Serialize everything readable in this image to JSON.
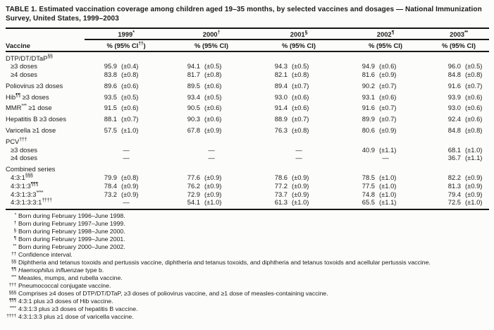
{
  "title": "TABLE 1. Estimated vaccination coverage among children aged 19–35 months, by selected vaccines and dosages — National Immunization Survey, United States, 1999–2003",
  "vaccine_header": "Vaccine",
  "columns": [
    {
      "year": "1999",
      "marker": "*",
      "sub_pre": "% (95% CI",
      "sub_sup": "††",
      "sub_post": ")"
    },
    {
      "year": "2000",
      "marker": "†",
      "sub_pre": "% (95% CI",
      "sub_sup": "",
      "sub_post": ")"
    },
    {
      "year": "2001",
      "marker": "§",
      "sub_pre": "% (95% CI",
      "sub_sup": "",
      "sub_post": ")"
    },
    {
      "year": "2002",
      "marker": "¶",
      "sub_pre": "% (95% CI",
      "sub_sup": "",
      "sub_post": ")"
    },
    {
      "year": "2003",
      "marker": "**",
      "sub_pre": "% (95% CI",
      "sub_sup": "",
      "sub_post": ")"
    }
  ],
  "rows": [
    {
      "kind": "group",
      "label": "DTP/DT/DTaP",
      "sup": "§§",
      "suffix": ""
    },
    {
      "kind": "sub",
      "label": "≥3 doses",
      "vals": [
        [
          "95.9",
          "(±0.4)"
        ],
        [
          "94.1",
          "(±0.5)"
        ],
        [
          "94.3",
          "(±0.5)"
        ],
        [
          "94.9",
          "(±0.6)"
        ],
        [
          "96.0",
          "(±0.5)"
        ]
      ]
    },
    {
      "kind": "sub",
      "label": "≥4 doses",
      "vals": [
        [
          "83.8",
          "(±0.8)"
        ],
        [
          "81.7",
          "(±0.8)"
        ],
        [
          "82.1",
          "(±0.8)"
        ],
        [
          "81.6",
          "(±0.9)"
        ],
        [
          "84.8",
          "(±0.8)"
        ]
      ]
    },
    {
      "kind": "row",
      "label": "Poliovirus ≥3 doses",
      "vals": [
        [
          "89.6",
          "(±0.6)"
        ],
        [
          "89.5",
          "(±0.6)"
        ],
        [
          "89.4",
          "(±0.7)"
        ],
        [
          "90.2",
          "(±0.7)"
        ],
        [
          "91.6",
          "(±0.7)"
        ]
      ]
    },
    {
      "kind": "row",
      "label": "Hib",
      "sup": "¶¶",
      "suffix": " ≥3 doses",
      "vals": [
        [
          "93.5",
          "(±0.5)"
        ],
        [
          "93.4",
          "(±0.5)"
        ],
        [
          "93.0",
          "(±0.6)"
        ],
        [
          "93.1",
          "(±0.6)"
        ],
        [
          "93.9",
          "(±0.6)"
        ]
      ]
    },
    {
      "kind": "row",
      "label": "MMR",
      "sup": "***",
      "suffix": " ≥1 dose",
      "vals": [
        [
          "91.5",
          "(±0.6)"
        ],
        [
          "90.5",
          "(±0.6)"
        ],
        [
          "91.4",
          "(±0.6)"
        ],
        [
          "91.6",
          "(±0.7)"
        ],
        [
          "93.0",
          "(±0.6)"
        ]
      ]
    },
    {
      "kind": "row",
      "label": "Hepatitis B ≥3 doses",
      "vals": [
        [
          "88.1",
          "(±0.7)"
        ],
        [
          "90.3",
          "(±0.6)"
        ],
        [
          "88.9",
          "(±0.7)"
        ],
        [
          "89.9",
          "(±0.7)"
        ],
        [
          "92.4",
          "(±0.6)"
        ]
      ]
    },
    {
      "kind": "row",
      "label": "Varicella ≥1 dose",
      "vals": [
        [
          "57.5",
          "(±1.0)"
        ],
        [
          "67.8",
          "(±0.9)"
        ],
        [
          "76.3",
          "(±0.8)"
        ],
        [
          "80.6",
          "(±0.9)"
        ],
        [
          "84.8",
          "(±0.8)"
        ]
      ]
    },
    {
      "kind": "group",
      "label": "PCV",
      "sup": "†††",
      "suffix": ""
    },
    {
      "kind": "sub",
      "label": "≥3 doses",
      "vals": [
        [
          "—",
          ""
        ],
        [
          "—",
          ""
        ],
        [
          "—",
          ""
        ],
        [
          "40.9",
          "(±1.1)"
        ],
        [
          "68.1",
          "(±1.0)"
        ]
      ]
    },
    {
      "kind": "sub",
      "label": "≥4 doses",
      "vals": [
        [
          "—",
          ""
        ],
        [
          "—",
          ""
        ],
        [
          "—",
          ""
        ],
        [
          "—",
          ""
        ],
        [
          "36.7",
          "(±1.1)"
        ]
      ]
    },
    {
      "kind": "group",
      "label": "Combined series",
      "suffix": ""
    },
    {
      "kind": "sub",
      "label": "4:3:1",
      "sup": "§§§",
      "vals": [
        [
          "79.9",
          "(±0.8)"
        ],
        [
          "77.6",
          "(±0.9)"
        ],
        [
          "78.6",
          "(±0.9)"
        ],
        [
          "78.5",
          "(±1.0)"
        ],
        [
          "82.2",
          "(±0.9)"
        ]
      ]
    },
    {
      "kind": "sub",
      "label": "4:3:1:3",
      "sup": "¶¶¶",
      "vals": [
        [
          "78.4",
          "(±0.9)"
        ],
        [
          "76.2",
          "(±0.9)"
        ],
        [
          "77.2",
          "(±0.9)"
        ],
        [
          "77.5",
          "(±1.0)"
        ],
        [
          "81.3",
          "(±0.9)"
        ]
      ]
    },
    {
      "kind": "sub",
      "label": "4:3:1:3:3",
      "sup": "****",
      "vals": [
        [
          "73.2",
          "(±0.9)"
        ],
        [
          "72.9",
          "(±0.9)"
        ],
        [
          "73.7",
          "(±0.9)"
        ],
        [
          "74.8",
          "(±1.0)"
        ],
        [
          "79.4",
          "(±0.9)"
        ]
      ]
    },
    {
      "kind": "sub",
      "label": "4:3:1:3:3:1",
      "sup": "††††",
      "vals": [
        [
          "—",
          ""
        ],
        [
          "54.1",
          "(±1.0)"
        ],
        [
          "61.3",
          "(±1.0)"
        ],
        [
          "65.5",
          "(±1.1)"
        ],
        [
          "72.5",
          "(±1.0)"
        ]
      ]
    }
  ],
  "footnotes": [
    {
      "marker": "*",
      "text": "Born during February 1996–June 1998."
    },
    {
      "marker": "†",
      "text": "Born during February 1997–June 1999."
    },
    {
      "marker": "§",
      "text": "Born during February 1998–June 2000."
    },
    {
      "marker": "¶",
      "text": "Born during February 1999–June 2001."
    },
    {
      "marker": "**",
      "text": "Born during February 2000–June 2002."
    },
    {
      "marker": "††",
      "text": "Confidence interval."
    },
    {
      "marker": "§§",
      "text": "Diphtheria and tetanus toxoids and pertussis vaccine, diphtheria and tetanus toxoids, and diphtheria and tetanus toxoids and acellular pertussis vaccine."
    },
    {
      "marker": "¶¶",
      "parts": [
        {
          "i": "Haemophilus influenzae"
        },
        {
          "t": " type b."
        }
      ]
    },
    {
      "marker": "***",
      "text": "Measles, mumps, and rubella vaccine."
    },
    {
      "marker": "†††",
      "text": "Pneumococcal conjugate vaccine."
    },
    {
      "marker": "§§§",
      "text": "Comprises ≥4 doses of DTP/DT/DTaP, ≥3 doses of poliovirus vaccine, and ≥1 dose of measles-containing vaccine."
    },
    {
      "marker": "¶¶¶",
      "text": "4:3:1 plus ≥3 doses of Hib vaccine."
    },
    {
      "marker": "****",
      "text": "4:3:1:3 plus ≥3 doses of hepatitis B vaccine."
    },
    {
      "marker": "††††",
      "text": "4:3:1:3:3 plus ≥1 dose of varicella vaccine."
    }
  ],
  "dash": "—",
  "colors": {
    "text": "#1b1b1b",
    "rule": "#161616",
    "background": "#fcfcfb"
  }
}
